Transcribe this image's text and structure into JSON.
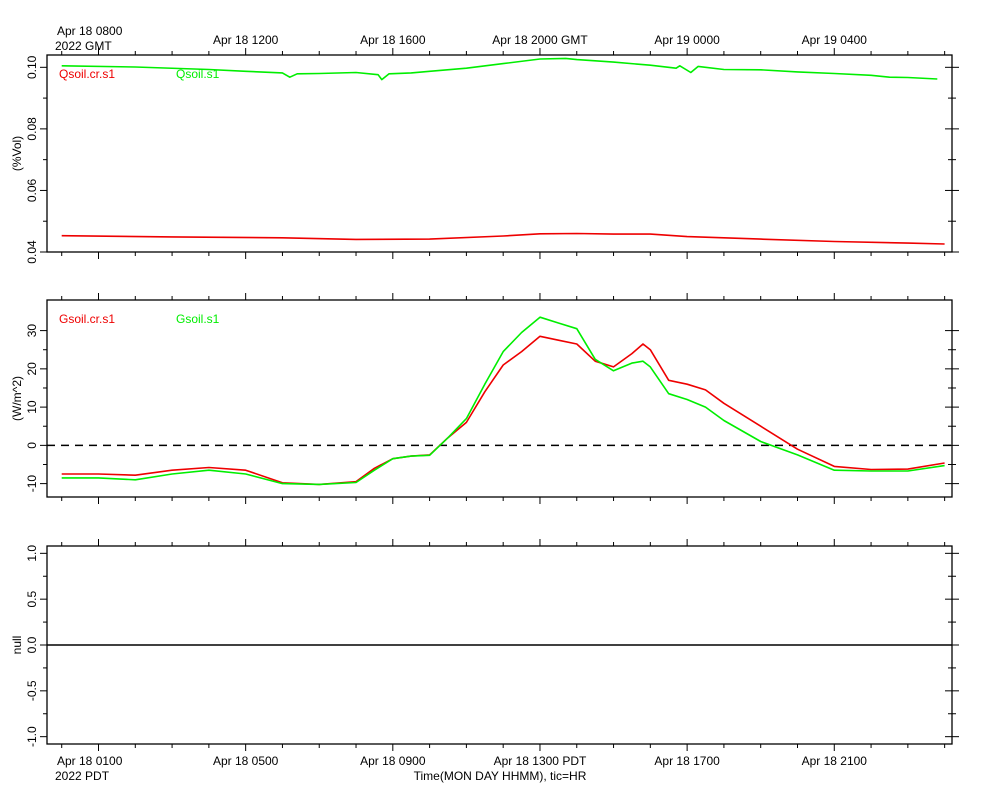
{
  "top_axis": {
    "ticks": [
      {
        "hour": 8,
        "label": "Apr 18 0800"
      },
      {
        "hour": 12,
        "label": "Apr 18 1200"
      },
      {
        "hour": 16,
        "label": "Apr 18 1600"
      },
      {
        "hour": 20,
        "label": "Apr 18 2000 GMT"
      },
      {
        "hour": 24,
        "label": "Apr 19 0000"
      },
      {
        "hour": 28,
        "label": "Apr 19 0400"
      }
    ],
    "sublabel": "2022 GMT"
  },
  "bottom_axis": {
    "ticks": [
      {
        "hour": 8,
        "label": "Apr 18 0100"
      },
      {
        "hour": 12,
        "label": "Apr 18 0500"
      },
      {
        "hour": 16,
        "label": "Apr 18 0900"
      },
      {
        "hour": 20,
        "label": "Apr 18 1300 PDT"
      },
      {
        "hour": 24,
        "label": "Apr 18 1700"
      },
      {
        "hour": 28,
        "label": "Apr 18 2100"
      }
    ],
    "sublabel": "2022 PDT",
    "xlabel": "Time(MON DAY HHMM), tic=HR"
  },
  "colors": {
    "red": "#ee0000",
    "green": "#00ee00"
  },
  "chart_data": [
    {
      "type": "line",
      "ylabel": "(%Vol)",
      "ylim": [
        0.04,
        0.104
      ],
      "yticks": [
        0.04,
        0.06,
        0.08,
        0.1
      ],
      "ytick_labels": [
        "0.04",
        "0.06",
        "0.08",
        "0.10"
      ],
      "series": [
        {
          "name": "Qsoil.cr.s1",
          "color": "#ee0000",
          "x": [
            7,
            10,
            13,
            15,
            17,
            19,
            20,
            21,
            22,
            23,
            24,
            26,
            28,
            30,
            31
          ],
          "y": [
            0.0453,
            0.0449,
            0.0446,
            0.0441,
            0.0442,
            0.0452,
            0.0459,
            0.046,
            0.0458,
            0.0458,
            0.045,
            0.0442,
            0.0434,
            0.0429,
            0.0426
          ]
        },
        {
          "name": "Qsoil.s1",
          "color": "#00ee00",
          "x": [
            7,
            9,
            11,
            12,
            13,
            13.2,
            13.4,
            14,
            15,
            15.6,
            15.7,
            15.9,
            16.5,
            17,
            18,
            19,
            20,
            20.7,
            21,
            22,
            23,
            23.7,
            23.8,
            24.1,
            24.3,
            25,
            26,
            27,
            28,
            29,
            29.5,
            30,
            30.8
          ],
          "y": [
            0.1005,
            0.1001,
            0.0993,
            0.0987,
            0.0982,
            0.0968,
            0.0979,
            0.098,
            0.0983,
            0.0976,
            0.096,
            0.0979,
            0.0982,
            0.0987,
            0.0997,
            0.1012,
            0.1027,
            0.1029,
            0.1025,
            0.1017,
            0.1007,
            0.0997,
            0.1005,
            0.0983,
            0.1003,
            0.0993,
            0.0992,
            0.0985,
            0.098,
            0.0974,
            0.0968,
            0.0967,
            0.0962
          ]
        }
      ]
    },
    {
      "type": "line",
      "ylabel": "(W/m^2)",
      "ylim": [
        -13.5,
        38
      ],
      "yticks": [
        -10,
        0,
        10,
        20,
        30
      ],
      "ytick_labels": [
        "-10",
        "0",
        "10",
        "20",
        "30"
      ],
      "zero_line": 0,
      "series": [
        {
          "name": "Gsoil.cr.s1",
          "color": "#ee0000",
          "x": [
            7,
            8,
            9,
            10,
            11,
            12,
            13,
            14,
            15,
            15.5,
            16,
            16.5,
            17,
            17.5,
            18,
            18.5,
            19,
            19.5,
            20,
            20.5,
            21,
            21.5,
            22,
            22.5,
            22.8,
            23,
            23.5,
            24,
            24.5,
            25,
            26,
            27,
            28,
            29,
            30,
            31
          ],
          "y": [
            -7.5,
            -7.5,
            -7.8,
            -6.5,
            -5.8,
            -6.5,
            -9.8,
            -10.2,
            -9.5,
            -6,
            -3.5,
            -2.8,
            -2.5,
            2,
            6,
            14,
            21,
            24.5,
            28.5,
            27.5,
            26.5,
            22,
            20.5,
            24,
            26.5,
            25,
            17,
            16,
            14.5,
            11,
            5,
            -1,
            -5.5,
            -6.3,
            -6.2,
            -4.6
          ]
        },
        {
          "name": "Gsoil.s1",
          "color": "#00ee00",
          "x": [
            7,
            8,
            9,
            10,
            11,
            12,
            13,
            14,
            15,
            15.5,
            16,
            16.5,
            17,
            17.5,
            18,
            18.5,
            19,
            19.5,
            20,
            20.5,
            21,
            21.5,
            22,
            22.5,
            22.8,
            23,
            23.5,
            24,
            24.5,
            25,
            26,
            27,
            28,
            29,
            30,
            31
          ],
          "y": [
            -8.5,
            -8.5,
            -9,
            -7.5,
            -6.5,
            -7.5,
            -10,
            -10.2,
            -9.7,
            -6.5,
            -3.5,
            -2.8,
            -2.6,
            2,
            7,
            16,
            24.5,
            29.5,
            33.5,
            32,
            30.5,
            22.5,
            19.5,
            21.5,
            22,
            20.5,
            13.5,
            12,
            10,
            6.5,
            1,
            -2.5,
            -6.5,
            -6.7,
            -6.7,
            -5.3
          ]
        }
      ]
    },
    {
      "type": "line",
      "ylabel": "null",
      "ylim": [
        -1.08,
        1.08
      ],
      "yticks": [
        -1.0,
        -0.5,
        0.0,
        0.5,
        1.0
      ],
      "ytick_labels": [
        "-1.0",
        "-0.5",
        "0.0",
        "0.5",
        "1.0"
      ],
      "zero_line": 0,
      "series": []
    }
  ]
}
